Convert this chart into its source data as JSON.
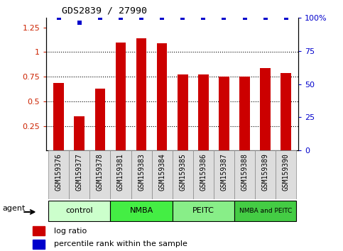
{
  "title": "GDS2839 / 27990",
  "categories": [
    "GSM159376",
    "GSM159377",
    "GSM159378",
    "GSM159381",
    "GSM159383",
    "GSM159384",
    "GSM159385",
    "GSM159386",
    "GSM159387",
    "GSM159388",
    "GSM159389",
    "GSM159390"
  ],
  "log_ratio": [
    0.69,
    0.35,
    0.63,
    1.1,
    1.14,
    1.09,
    0.77,
    0.77,
    0.75,
    0.75,
    0.84,
    0.79
  ],
  "percentile_rank": [
    100,
    96,
    100,
    100,
    100,
    100,
    100,
    100,
    100,
    100,
    100,
    100
  ],
  "bar_color": "#cc0000",
  "dot_color": "#0000cc",
  "ylim_left": [
    0,
    1.35
  ],
  "ylim_right": [
    0,
    100
  ],
  "yticks_left": [
    0.25,
    0.5,
    0.75,
    1.0,
    1.25
  ],
  "ytick_labels_left": [
    "0.25",
    "0.5",
    "0.75",
    "1",
    "1.25"
  ],
  "yticks_right": [
    0,
    25,
    50,
    75,
    100
  ],
  "ytick_labels_right": [
    "0",
    "25",
    "50",
    "75",
    "100%"
  ],
  "gridlines": [
    0.25,
    0.5,
    0.75,
    1.0
  ],
  "groups": [
    {
      "label": "control",
      "start": 0,
      "end": 3,
      "color": "#ccffcc"
    },
    {
      "label": "NMBA",
      "start": 3,
      "end": 6,
      "color": "#44ee44"
    },
    {
      "label": "PEITC",
      "start": 6,
      "end": 9,
      "color": "#88ee88"
    },
    {
      "label": "NMBA and PEITC",
      "start": 9,
      "end": 12,
      "color": "#44cc44"
    }
  ],
  "agent_label": "agent",
  "legend_bar_label": "log ratio",
  "legend_dot_label": "percentile rank within the sample",
  "bar_width": 0.5,
  "background_color": "#ffffff",
  "tick_color_left": "#cc2200",
  "tick_color_right": "#0000cc",
  "xtick_bg": "#dddddd"
}
